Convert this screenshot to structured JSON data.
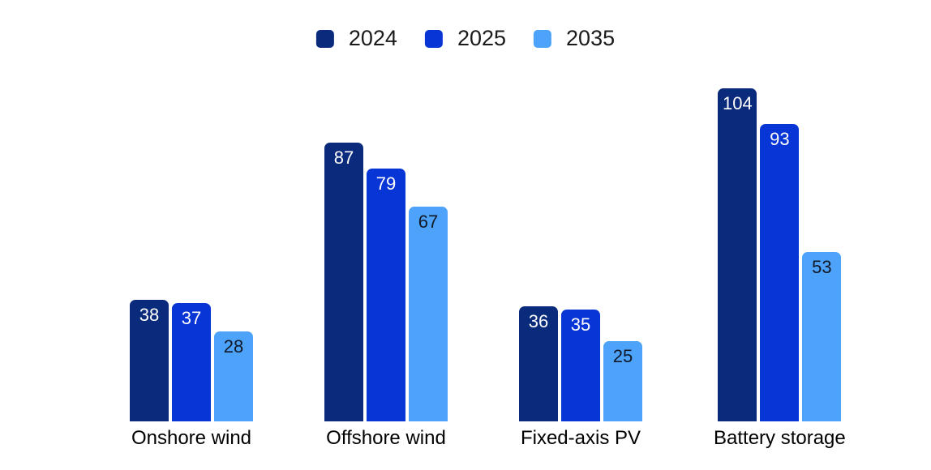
{
  "chart_data": {
    "type": "bar",
    "title": "",
    "categories": [
      "Onshore wind",
      "Offshore wind",
      "Fixed-axis PV",
      "Battery storage"
    ],
    "series": [
      {
        "name": "2024",
        "color": "#0a2a7c",
        "label_color": "#ffffff",
        "values": [
          38,
          87,
          36,
          104
        ]
      },
      {
        "name": "2025",
        "color": "#0836d6",
        "label_color": "#ffffff",
        "values": [
          37,
          79,
          35,
          93
        ]
      },
      {
        "name": "2035",
        "color": "#4da3fa",
        "label_color": "#111827",
        "values": [
          28,
          67,
          25,
          53
        ]
      }
    ],
    "legend": {
      "position": "top-center",
      "entries": [
        "2024",
        "2025",
        "2035"
      ]
    },
    "value_labels": true,
    "grid": false,
    "axes_visible": false,
    "background_color": "#ffffff"
  }
}
